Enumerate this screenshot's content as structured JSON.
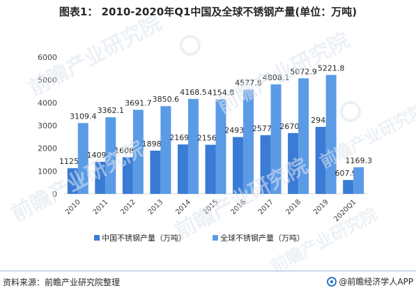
{
  "title": "图表1： 2010-2020年Q1中国及全球不锈钢产量(单位：万吨)",
  "footer": {
    "source": "资料来源：前瞻产业研究院整理",
    "brand": "@前瞻经济学人APP"
  },
  "watermarks": [
    "前瞻产业研究院",
    "前瞻产业研究院",
    "前瞻产业研究院",
    "前瞻产业研究院",
    "前瞻产业研究院",
    "前瞻产业研究院"
  ],
  "colors": {
    "series_china": "#3a7bd5",
    "series_global": "#5b9be6",
    "axis": "#d9d9d9",
    "text": "#404040"
  },
  "chart_data": {
    "type": "bar",
    "categories": [
      "2010",
      "2011",
      "2012",
      "2013",
      "2014",
      "2015",
      "2016",
      "2017",
      "2018",
      "2019",
      "2020Q1"
    ],
    "series": [
      {
        "name": "中国不锈钢产量（万吨）",
        "values": [
          1125.6,
          1409.1,
          1608.7,
          1898.4,
          2169.2,
          2156.2,
          2493.8,
          2577.4,
          2670.6,
          2940,
          607.99
        ],
        "labels": [
          "1125.6",
          "1409.1",
          "1608.7",
          "1898.4",
          "2169.2",
          "2156.2",
          "2493.8",
          "2577.4",
          "2670.6",
          "2940",
          "607.99"
        ]
      },
      {
        "name": "全球不锈钢产量（万吨）",
        "values": [
          3109.4,
          3362.1,
          3691.7,
          3850.6,
          4168.5,
          4154.8,
          4577.8,
          4808.1,
          5072.9,
          5221.8,
          1169.3
        ],
        "labels": [
          "3109.4",
          "3362.1",
          "3691.7",
          "3850.6",
          "4168.5",
          "4154.8",
          "4577.8",
          "4808.1",
          "5072.9",
          "5221.8",
          "1169.3"
        ]
      }
    ],
    "ylim": [
      0,
      6000
    ],
    "yticks": [
      "0",
      "1000",
      "2000",
      "3000",
      "4000",
      "5000",
      "6000"
    ],
    "grid": false,
    "legend_position": "bottom"
  }
}
